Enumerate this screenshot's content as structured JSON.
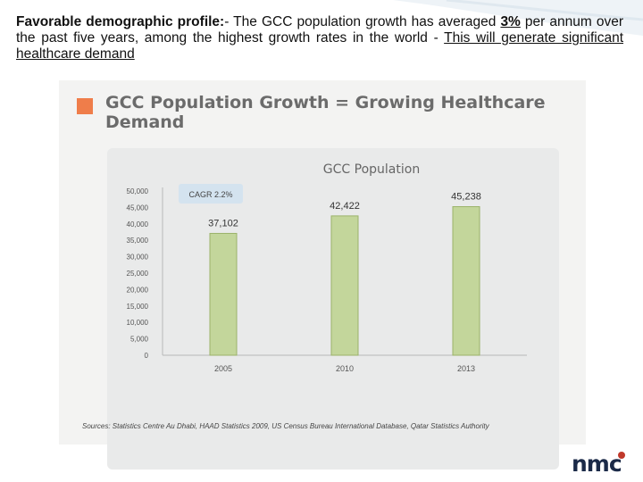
{
  "headline": {
    "lead": "Favorable demographic profile:",
    "text1": "- The GCC population growth has averaged ",
    "rate": "3%",
    "text2": " per annum over the past five years, among the highest growth rates in the world - ",
    "tail": "This will generate significant healthcare demand"
  },
  "panel": {
    "title": "GCC Population Growth = Growing Healthcare Demand",
    "sources": "Sources: Statistics Centre Au Dhabi, HAAD Statistics 2009, US Census Bureau International Database, Qatar Statistics Authority"
  },
  "logo": {
    "text": "nmc"
  },
  "colors": {
    "bar": "#c3d69b",
    "bar_edge": "#9bb36a",
    "accent": "#ef7d4a",
    "badge_bg": "#d4e3ef",
    "title_gray": "#6b6b6b"
  },
  "chart_data": {
    "type": "bar",
    "title": "GCC Population",
    "annotation": "CAGR 2.2%",
    "categories": [
      "2005",
      "2010",
      "2013"
    ],
    "values": [
      37102,
      42422,
      45238
    ],
    "value_labels": [
      "37,102",
      "42,422",
      "45,238"
    ],
    "ylim": [
      0,
      50000
    ],
    "yticks": [
      "0",
      "5,000",
      "10,000",
      "15,000",
      "20,000",
      "25,000",
      "30,000",
      "35,000",
      "40,000",
      "45,000",
      "50,000"
    ],
    "ytick_values": [
      0,
      5000,
      10000,
      15000,
      20000,
      25000,
      30000,
      35000,
      40000,
      45000,
      50000
    ],
    "grid": false,
    "legend": "none"
  }
}
